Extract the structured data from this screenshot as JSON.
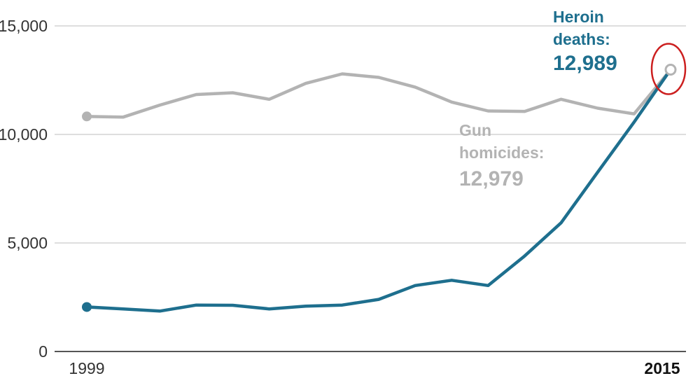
{
  "chart_data": {
    "type": "line",
    "x": [
      "1999",
      "2000",
      "2001",
      "2002",
      "2003",
      "2004",
      "2005",
      "2006",
      "2007",
      "2008",
      "2009",
      "2010",
      "2011",
      "2012",
      "2013",
      "2014",
      "2015"
    ],
    "x_tick_labels": {
      "first": "1999",
      "last": "2015"
    },
    "y_ticks": [
      {
        "value": 0,
        "label": "0"
      },
      {
        "value": 5000,
        "label": "5,000"
      },
      {
        "value": 10000,
        "label": "10,000"
      },
      {
        "value": 15000,
        "label": "15,000"
      }
    ],
    "ylim": [
      0,
      15000
    ],
    "grid": true,
    "series": [
      {
        "key": "gun",
        "color": "#b3b3b3",
        "values": [
          10830,
          10800,
          11350,
          11840,
          11920,
          11620,
          12350,
          12790,
          12630,
          12180,
          11490,
          11080,
          11060,
          11620,
          11210,
          10950,
          12979
        ],
        "annotation": {
          "label_lines": [
            "Gun",
            "homicides:"
          ],
          "value": "12,979"
        }
      },
      {
        "key": "heroin",
        "color": "#1e6f8e",
        "values": [
          2050,
          1960,
          1860,
          2140,
          2130,
          1960,
          2090,
          2140,
          2400,
          3040,
          3280,
          3040,
          4400,
          5930,
          8260,
          10570,
          12989
        ],
        "annotation": {
          "label_lines": [
            "Heroin",
            "deaths:"
          ],
          "value": "12,989"
        }
      }
    ],
    "highlight_color": "#cc1f1f"
  }
}
